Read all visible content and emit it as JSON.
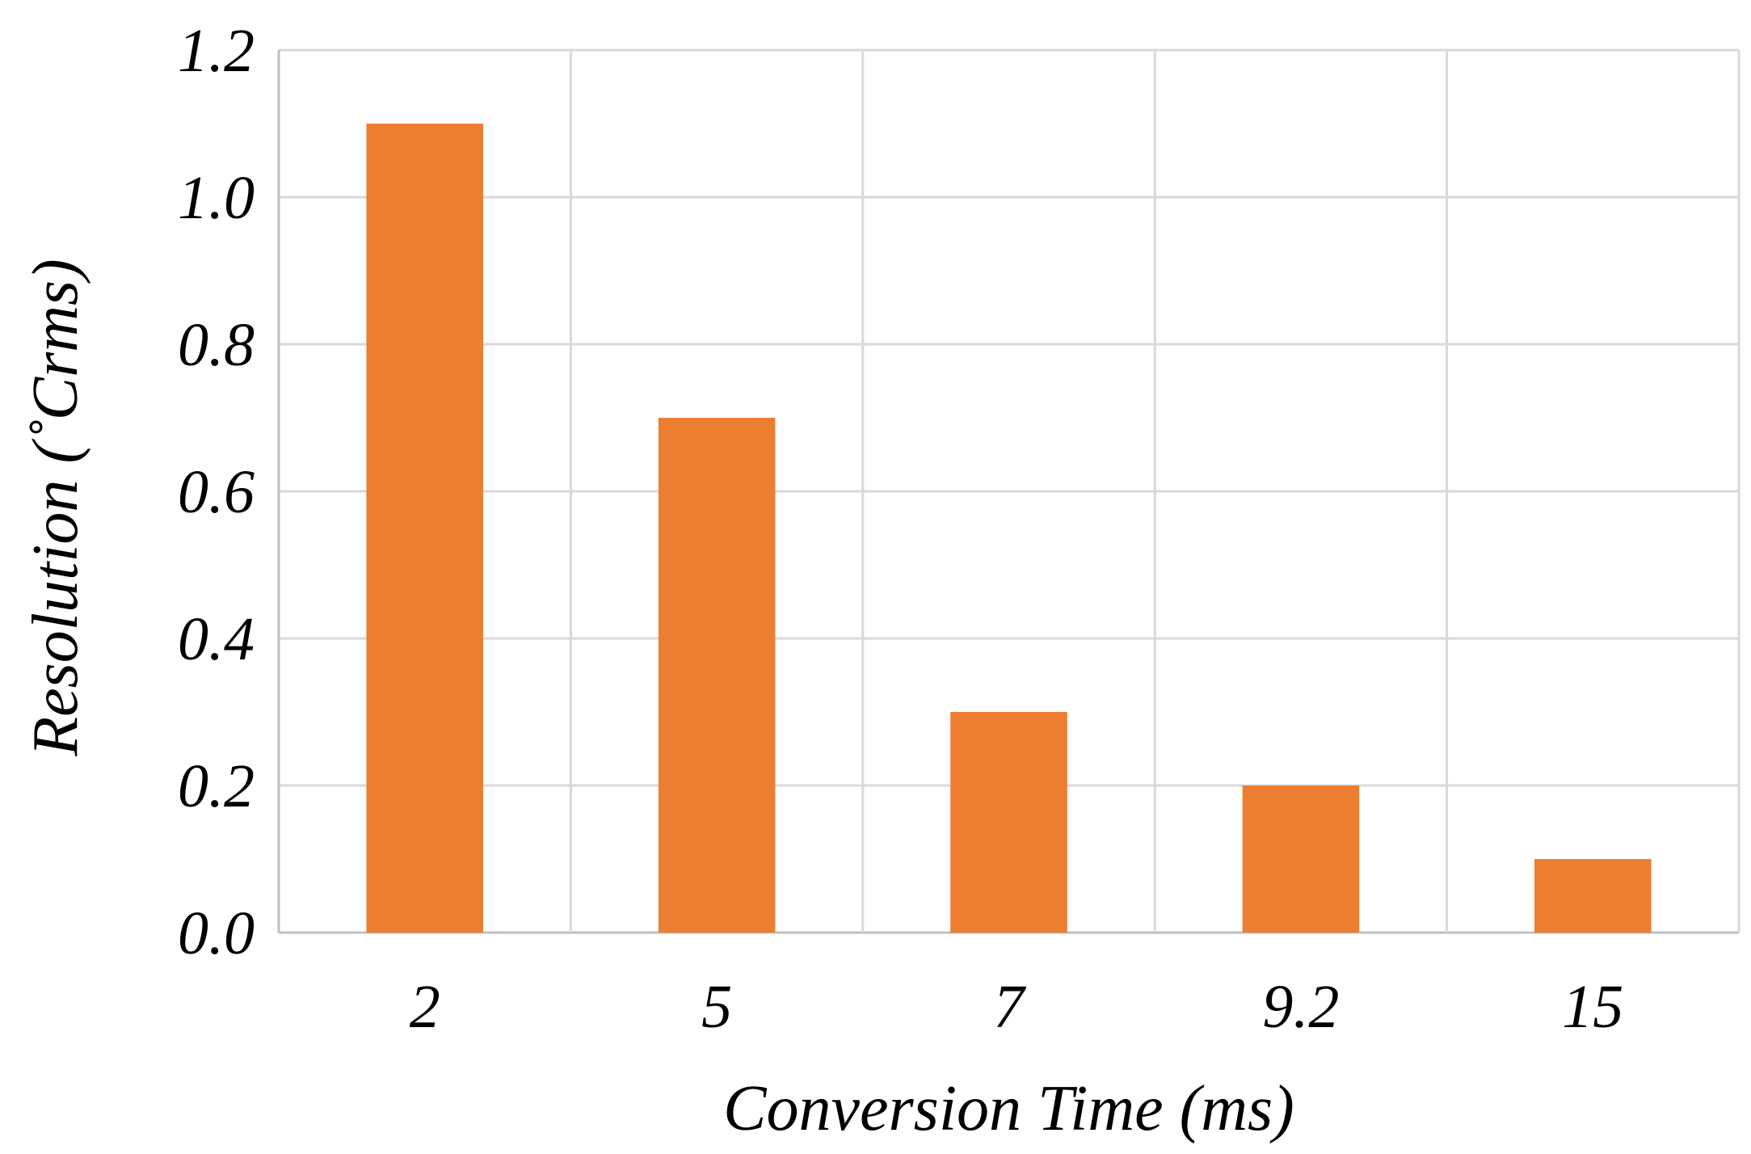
{
  "chart_data": {
    "type": "bar",
    "categories": [
      "2",
      "5",
      "7",
      "9.2",
      "15"
    ],
    "values": [
      1.1,
      0.7,
      0.3,
      0.2,
      0.1
    ],
    "ylim": [
      0,
      1.2
    ],
    "yticks": [
      "0.0",
      "0.2",
      "0.4",
      "0.6",
      "0.8",
      "1.0",
      "1.2"
    ],
    "xlabel": "Conversion Time (ms)",
    "ylabel": "Resolution (˚Crms)",
    "grid": true,
    "colors": {
      "bar": "#ED7D31",
      "grid": "#D9D9D9",
      "axis": "#BFBFBF"
    }
  }
}
